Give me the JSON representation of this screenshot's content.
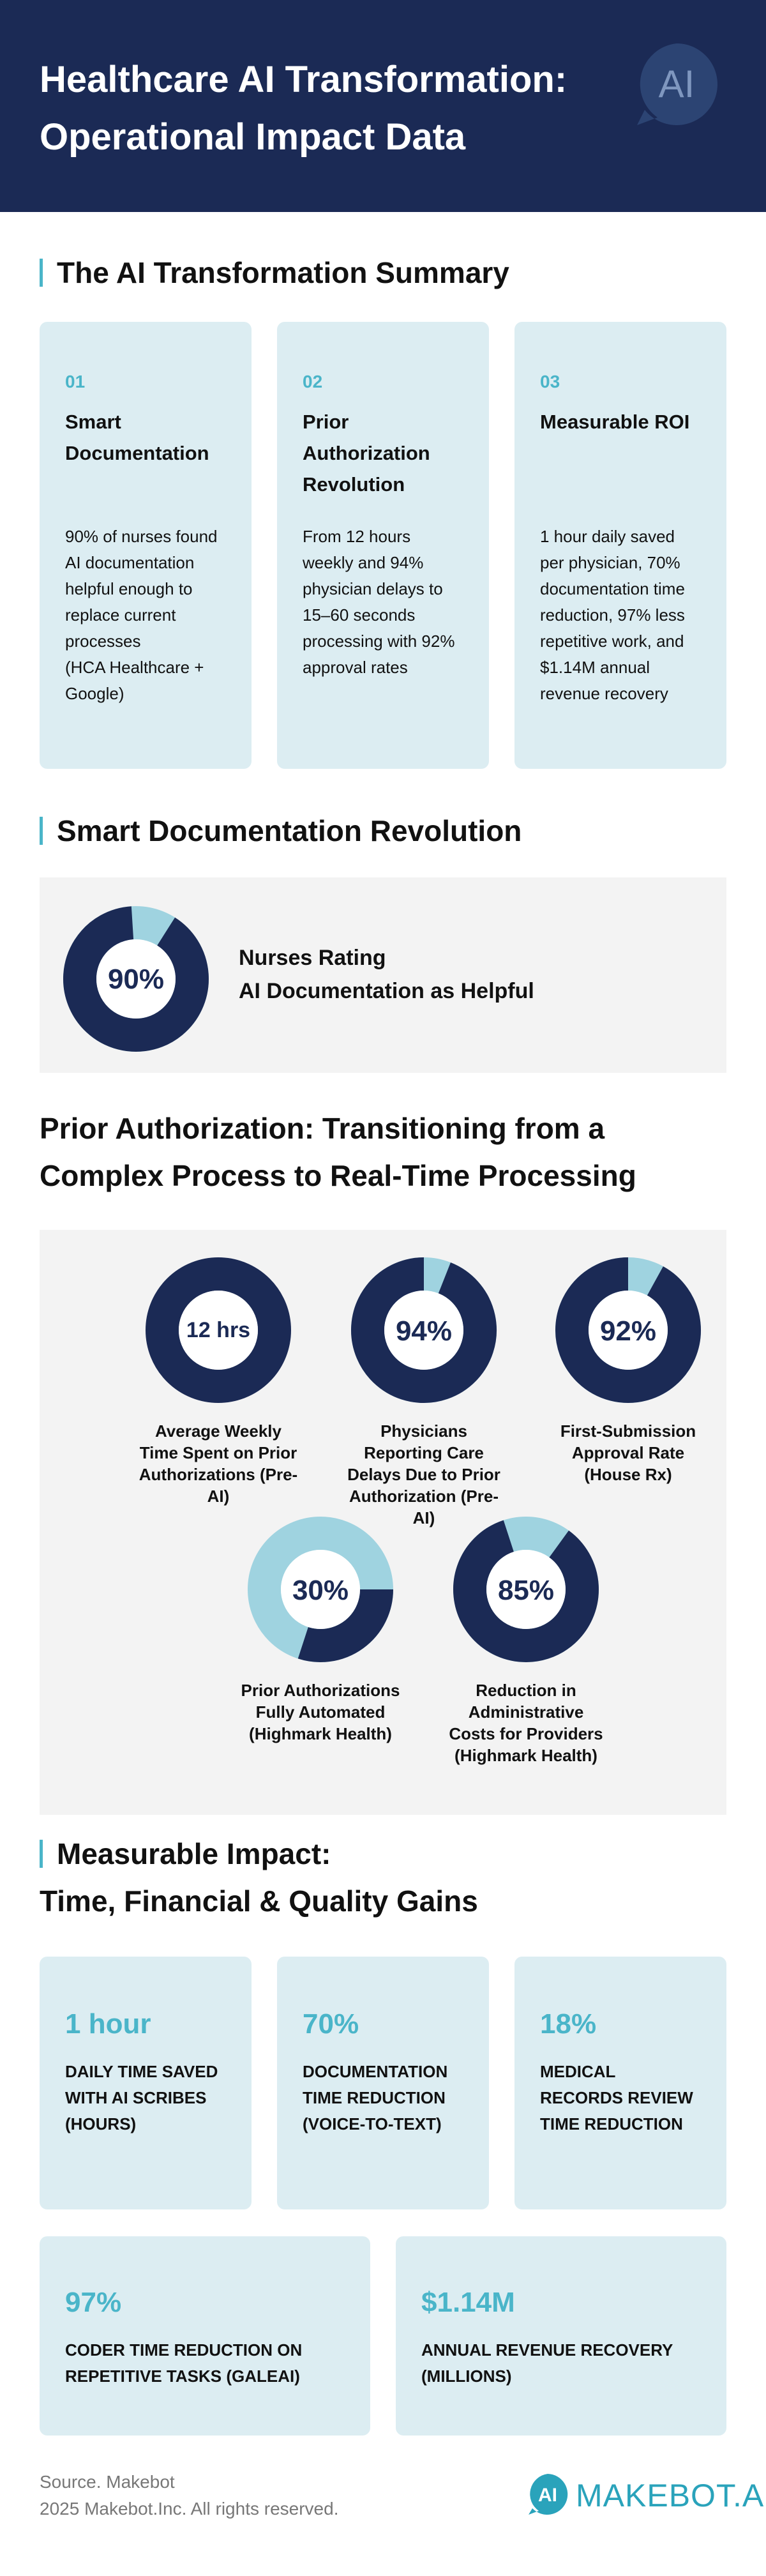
{
  "header": {
    "title": "Healthcare AI Transformation: Operational Impact Data",
    "logo_text": "AI"
  },
  "summary": {
    "heading": "The AI Transformation Summary",
    "cards": [
      {
        "num": "01",
        "title": "Smart Documentation",
        "desc": "90% of nurses found AI documentation helpful enough to replace current processes\n(HCA Healthcare + Google)"
      },
      {
        "num": "02",
        "title": "Prior Authorization Revolution",
        "desc": "From 12 hours weekly and 94% physician delays to 15–60 seconds processing with 92% approval rates"
      },
      {
        "num": "03",
        "title": "Measurable ROI",
        "desc": "1 hour daily saved per physician, 70% documentation time reduction, 97% less repetitive work, and $1.14M annual revenue recovery"
      }
    ]
  },
  "documentation": {
    "heading": "Smart Documentation Revolution",
    "donut_label": "90%",
    "fraction": 0.9,
    "text_line1": "Nurses Rating",
    "text_line2": "AI Documentation as Helpful"
  },
  "prior_auth": {
    "heading_line1": "Prior Authorization: Transitioning from a",
    "heading_line2": "Complex Process to Real-Time Processing",
    "items": [
      {
        "value": "12 hrs",
        "fraction": 1.0,
        "label": "Average Weekly Time Spent on Prior Authorizations (Pre-AI)"
      },
      {
        "value": "94%",
        "fraction": 0.94,
        "label": "Physicians Reporting Care Delays Due to Prior Authorization (Pre-AI)"
      },
      {
        "value": "92%",
        "fraction": 0.92,
        "label": "First-Submission Approval Rate (House Rx)"
      },
      {
        "value": "30%",
        "fraction": 0.3,
        "label": "Prior Authorizations Fully Automated (Highmark Health)"
      },
      {
        "value": "85%",
        "fraction": 0.85,
        "label": "Reduction in Administrative Costs for Providers (Highmark Health)"
      }
    ]
  },
  "impact": {
    "heading_line1": "Measurable Impact:",
    "heading_line2": "Time, Financial & Quality Gains",
    "cards": [
      {
        "value": "1 hour",
        "label": "DAILY TIME SAVED WITH AI SCRIBES (HOURS)"
      },
      {
        "value": "70%",
        "label": "DOCUMENTATION TIME REDUCTION (VOICE-TO-TEXT)"
      },
      {
        "value": "18%",
        "label": "MEDICAL RECORDS REVIEW TIME REDUCTION"
      },
      {
        "value": "97%",
        "label": "CODER TIME REDUCTION ON REPETITIVE TASKS (GALEAI)"
      },
      {
        "value": "$1.14M",
        "label": "ANNUAL REVENUE RECOVERY (MILLIONS)"
      }
    ]
  },
  "footer": {
    "source": "Source. Makebot",
    "copyright": "2025 Makebot.Inc. All rights reserved.",
    "brand": "MAKEBOT.AI",
    "brand_mark": "AI"
  },
  "colors": {
    "navy": "#1b2a55",
    "accent": "#4ab5c9",
    "light": "#9fd3e0",
    "card": "#dcedf2"
  }
}
